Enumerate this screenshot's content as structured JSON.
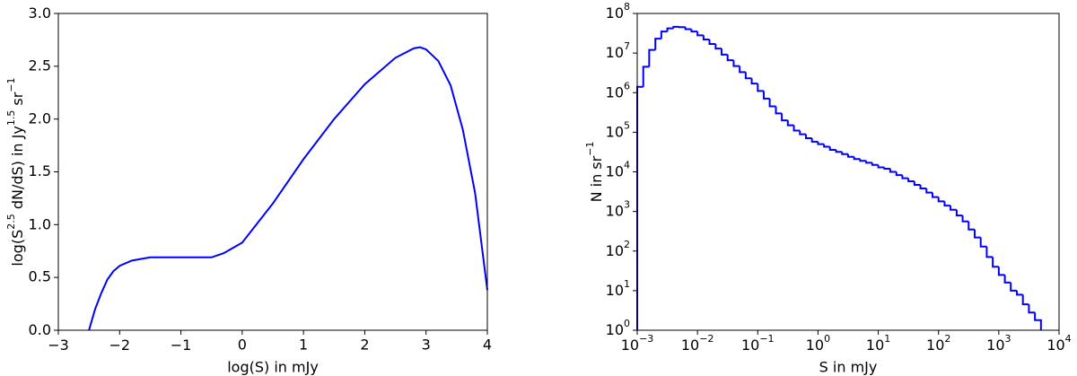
{
  "chart_data": [
    {
      "type": "line",
      "color": "#0000ff",
      "xlabel": "log(S) in mJy",
      "ylabel": [
        "log(S",
        "2.5",
        " dN/dS) in Jy",
        "1.5",
        " sr",
        "−1"
      ],
      "x": [
        -2.5,
        -2.4,
        -2.3,
        -2.2,
        -2.1,
        -2,
        -1.8,
        -1.5,
        -0.5,
        -0.3,
        0,
        0.5,
        1,
        1.5,
        2,
        2.5,
        2.8,
        2.9,
        3,
        3.2,
        3.4,
        3.6,
        3.8,
        4
      ],
      "values": [
        0,
        0.2,
        0.35,
        0.48,
        0.56,
        0.61,
        0.66,
        0.69,
        0.69,
        0.73,
        0.83,
        1.2,
        1.62,
        2.0,
        2.33,
        2.58,
        2.67,
        2.68,
        2.66,
        2.55,
        2.32,
        1.9,
        1.3,
        0.38
      ],
      "xlim": [
        -3,
        4
      ],
      "xticks": [
        {
          "value": -3,
          "label": "−3"
        },
        {
          "value": -2,
          "label": "−2"
        },
        {
          "value": -1,
          "label": "−1"
        },
        0,
        1,
        2,
        3,
        4
      ],
      "ylim": [
        0,
        3
      ],
      "yticks": [
        {
          "value": 0,
          "label": "0.0"
        },
        0.5,
        {
          "value": 1,
          "label": "1.0"
        },
        1.5,
        {
          "value": 2,
          "label": "2.0"
        },
        2.5,
        {
          "value": 3,
          "label": "3.0"
        }
      ]
    },
    {
      "type": "histogram",
      "color": "#0000ff",
      "log_x": true,
      "log_y": true,
      "xlabel": "S in mJy",
      "ylabel": [
        "N in sr",
        "−1"
      ],
      "bins": [
        0.001,
        0.00126,
        0.00158,
        0.002,
        0.00251,
        0.00316,
        0.00398,
        0.00501,
        0.00631,
        0.00794,
        0.01,
        0.0126,
        0.0158,
        0.02,
        0.0251,
        0.0316,
        0.0398,
        0.0501,
        0.0631,
        0.0794,
        0.1,
        0.126,
        0.158,
        0.2,
        0.251,
        0.316,
        0.398,
        0.501,
        0.631,
        0.794,
        1,
        1.26,
        1.58,
        2,
        2.51,
        3.16,
        3.98,
        5.01,
        6.31,
        7.94,
        10,
        12.6,
        15.8,
        20,
        25.1,
        31.6,
        39.8,
        50.1,
        63.1,
        79.4,
        100,
        126,
        158,
        200,
        251,
        316,
        398,
        501,
        631,
        794,
        1000,
        1260,
        1580,
        2000,
        2510,
        3160,
        3980,
        5010
      ],
      "values": [
        1400000,
        4500000,
        12000000,
        23000000,
        35000000,
        42000000,
        46000000,
        45000000,
        40000000,
        35000000,
        28000000,
        22000000,
        17000000,
        13000000,
        9100000,
        6600000,
        4700000,
        3300000,
        2300000,
        1700000,
        1100000,
        710000,
        450000,
        300000,
        200000,
        150000,
        110000,
        89000,
        71000,
        58000,
        50000,
        43000,
        36000,
        32000,
        28000,
        24000,
        21000,
        19000,
        17000,
        15000,
        13000,
        12000,
        10000,
        8300,
        6900,
        5800,
        4700,
        3800,
        3000,
        2300,
        1800,
        1400,
        1100,
        790,
        560,
        350,
        220,
        130,
        71,
        40,
        25,
        16,
        10,
        7.9,
        4.5,
        2.8,
        1.8
      ],
      "xlim": [
        0.001,
        10000
      ],
      "xticks": [
        {
          "value": 0.001,
          "label": "10",
          "exponent": "−3"
        },
        {
          "value": 0.01,
          "label": "10",
          "exponent": "−2"
        },
        {
          "value": 0.1,
          "label": "10",
          "exponent": "−1"
        },
        {
          "value": 1,
          "label": "10",
          "exponent": "0"
        },
        {
          "value": 10,
          "label": "10",
          "exponent": "1"
        },
        {
          "value": 100,
          "label": "10",
          "exponent": "2"
        },
        {
          "value": 1000,
          "label": "10",
          "exponent": "3"
        },
        {
          "value": 10000,
          "label": "10",
          "exponent": "4"
        }
      ],
      "ylim": [
        1,
        100000000
      ],
      "yticks": [
        {
          "value": 1,
          "label": "10",
          "exponent": "0"
        },
        {
          "value": 10,
          "label": "10",
          "exponent": "1"
        },
        {
          "value": 100,
          "label": "10",
          "exponent": "2"
        },
        {
          "value": 1000,
          "label": "10",
          "exponent": "3"
        },
        {
          "value": 10000,
          "label": "10",
          "exponent": "4"
        },
        {
          "value": 100000,
          "label": "10",
          "exponent": "5"
        },
        {
          "value": 1000000,
          "label": "10",
          "exponent": "6"
        },
        {
          "value": 10000000,
          "label": "10",
          "exponent": "7"
        },
        {
          "value": 100000000,
          "label": "10",
          "exponent": "8"
        }
      ]
    }
  ]
}
